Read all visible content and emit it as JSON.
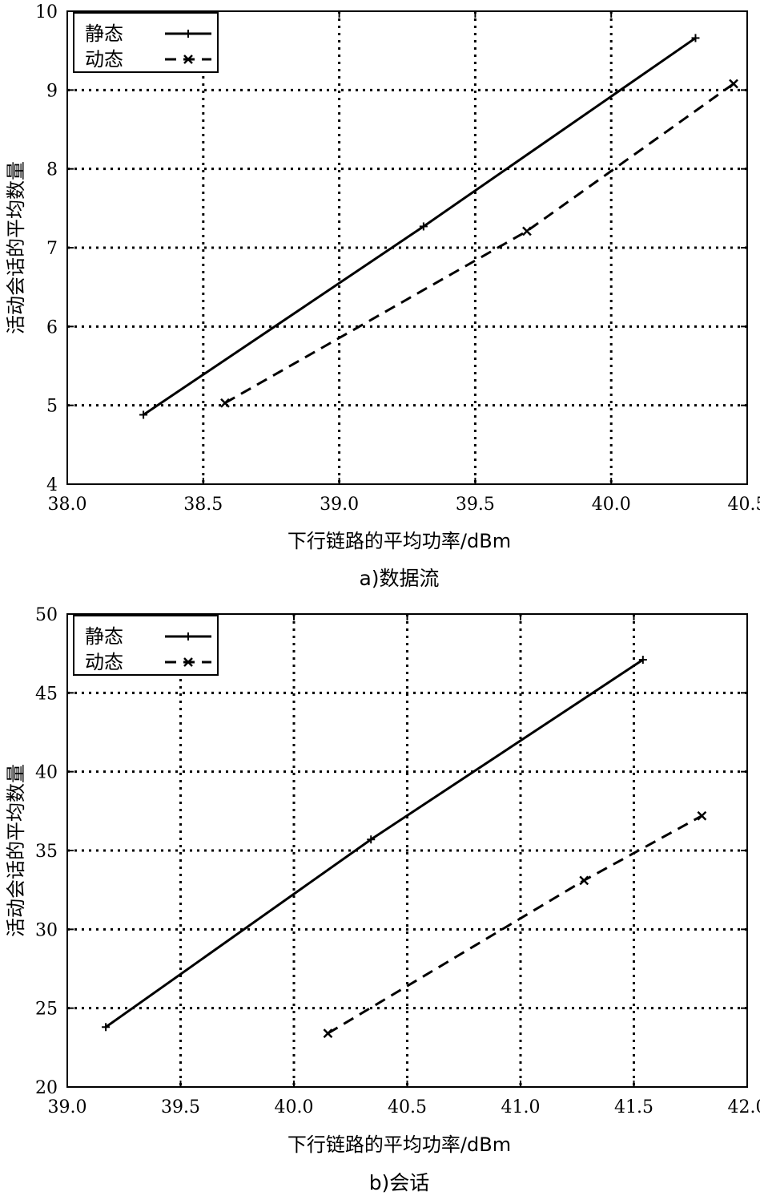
{
  "chart_data": [
    {
      "type": "line",
      "caption": "a)数据流",
      "xlabel": "下行链路的平均功率/dBm",
      "ylabel": "活动会话的平均数量",
      "xlim": [
        38.0,
        40.5
      ],
      "ylim": [
        4,
        10
      ],
      "xticks": [
        38.0,
        38.5,
        39.0,
        39.5,
        40.0,
        40.5
      ],
      "xtick_labels": [
        "38.0",
        "38.5",
        "39.0",
        "39.5",
        "40.0",
        "40.5"
      ],
      "yticks": [
        4,
        5,
        6,
        7,
        8,
        9,
        10
      ],
      "ytick_labels": [
        "4",
        "5",
        "6",
        "7",
        "8",
        "9",
        "10"
      ],
      "grid": true,
      "legend_position": "top-left",
      "series": [
        {
          "name": "静态",
          "line_style": "solid",
          "marker": "plus",
          "color": "#000000",
          "points": [
            [
              38.28,
              4.88
            ],
            [
              39.31,
              7.27
            ],
            [
              40.31,
              9.66
            ]
          ]
        },
        {
          "name": "动态",
          "line_style": "dashed",
          "marker": "x",
          "color": "#000000",
          "points": [
            [
              38.58,
              5.03
            ],
            [
              39.69,
              7.21
            ],
            [
              40.45,
              9.08
            ]
          ]
        }
      ]
    },
    {
      "type": "line",
      "caption": "b)会话",
      "xlabel": "下行链路的平均功率/dBm",
      "ylabel": "活动会话的平均数量",
      "xlim": [
        39.0,
        42.0
      ],
      "ylim": [
        20,
        50
      ],
      "xticks": [
        39.0,
        39.5,
        40.0,
        40.5,
        41.0,
        41.5,
        42.0
      ],
      "xtick_labels": [
        "39.0",
        "39.5",
        "40.0",
        "40.5",
        "41.0",
        "41.5",
        "42.0"
      ],
      "yticks": [
        20,
        25,
        30,
        35,
        40,
        45,
        50
      ],
      "ytick_labels": [
        "20",
        "25",
        "30",
        "35",
        "40",
        "45",
        "50"
      ],
      "grid": true,
      "legend_position": "top-left",
      "series": [
        {
          "name": "静态",
          "line_style": "solid",
          "marker": "plus",
          "color": "#000000",
          "points": [
            [
              39.17,
              23.8
            ],
            [
              40.34,
              35.7
            ],
            [
              41.54,
              47.1
            ]
          ]
        },
        {
          "name": "动态",
          "line_style": "dashed",
          "marker": "x",
          "color": "#000000",
          "points": [
            [
              40.15,
              23.4
            ],
            [
              41.28,
              33.1
            ],
            [
              41.8,
              37.2
            ]
          ]
        }
      ]
    }
  ]
}
